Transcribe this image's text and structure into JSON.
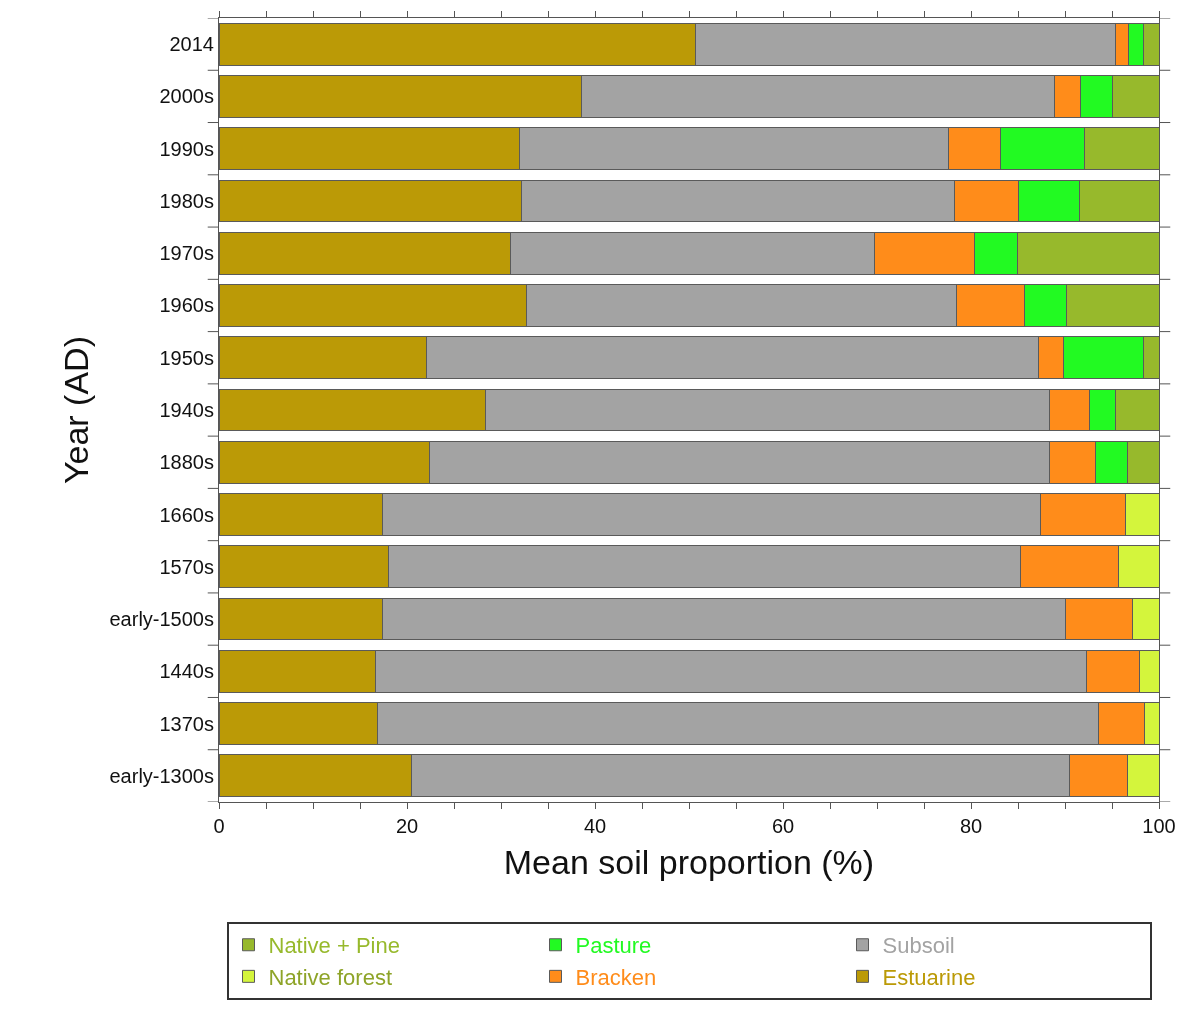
{
  "chart_data": {
    "type": "bar",
    "orientation": "horizontal",
    "stacked": true,
    "xlabel": "Mean soil proportion (%)",
    "ylabel": "Year (AD)",
    "categories": [
      "2014",
      "2000s",
      "1990s",
      "1980s",
      "1970s",
      "1960s",
      "1950s",
      "1940s",
      "1880s",
      "1660s",
      "1570s",
      "early-1500s",
      "1440s",
      "1370s",
      "early-1300s"
    ],
    "series": [
      {
        "name": "Estuarine",
        "color": "#bb9a06",
        "values": [
          50.7,
          38.6,
          32.0,
          32.2,
          31.0,
          32.7,
          22.1,
          28.4,
          22.4,
          17.4,
          18.0,
          17.4,
          16.6,
          16.9,
          20.5
        ]
      },
      {
        "name": "Subsoil",
        "color": "#a3a3a3",
        "values": [
          44.7,
          50.3,
          45.6,
          46.0,
          38.7,
          45.8,
          65.1,
          59.9,
          65.9,
          70.0,
          67.3,
          72.6,
          75.7,
          76.7,
          70.0
        ]
      },
      {
        "name": "Bracken",
        "color": "#ff8c1a",
        "values": [
          1.4,
          2.8,
          5.5,
          6.9,
          10.7,
          7.2,
          2.6,
          4.3,
          4.9,
          9.0,
          10.4,
          7.2,
          5.6,
          4.9,
          6.1
        ]
      },
      {
        "name": "Pasture",
        "color": "#22fa22",
        "values": [
          1.5,
          3.4,
          9.0,
          6.4,
          4.5,
          4.5,
          8.5,
          2.8,
          3.4,
          null,
          null,
          null,
          null,
          null,
          null
        ]
      },
      {
        "name": "Native + Pine",
        "color": "#97b92c",
        "values": [
          1.7,
          4.9,
          7.9,
          8.5,
          15.1,
          9.8,
          1.7,
          4.6,
          3.4,
          null,
          null,
          null,
          null,
          null,
          null
        ]
      },
      {
        "name": "Native forest",
        "color": "#d4f53c",
        "values": [
          null,
          null,
          null,
          null,
          null,
          null,
          null,
          null,
          null,
          3.6,
          4.3,
          2.8,
          2.1,
          1.5,
          3.4
        ]
      }
    ],
    "xlim": [
      0,
      100
    ],
    "xticks": [
      0,
      {
        "value": 5,
        "label": null
      },
      {
        "value": 10,
        "label": null
      },
      {
        "value": 15,
        "label": null
      },
      20,
      {
        "value": 25,
        "label": null
      },
      {
        "value": 30,
        "label": null
      },
      {
        "value": 35,
        "label": null
      },
      40,
      {
        "value": 45,
        "label": null
      },
      {
        "value": 50,
        "label": null
      },
      {
        "value": 55,
        "label": null
      },
      60,
      {
        "value": 65,
        "label": null
      },
      {
        "value": 70,
        "label": null
      },
      {
        "value": 75,
        "label": null
      },
      80,
      {
        "value": 85,
        "label": null
      },
      {
        "value": 90,
        "label": null
      },
      {
        "value": 95,
        "label": null
      },
      100
    ],
    "grid": false,
    "legend": "bottom"
  }
}
